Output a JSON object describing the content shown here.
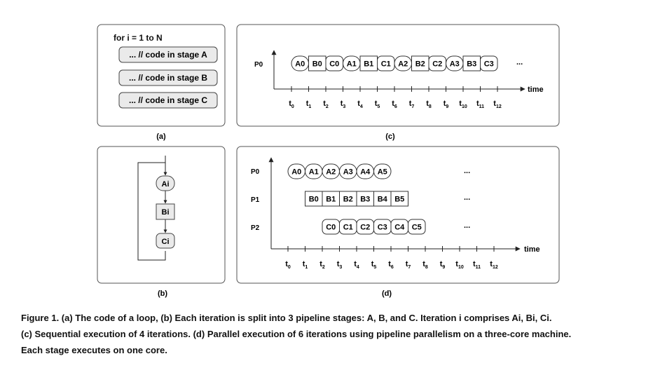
{
  "panel_a": {
    "loop_header": "for i = 1 to N",
    "stages": [
      "... // code in stage A",
      "... // code in stage B",
      "... // code in stage C"
    ],
    "label": "(a)"
  },
  "panel_b": {
    "nodes": [
      "Ai",
      "Bi",
      "Ci"
    ],
    "label": "(b)"
  },
  "panel_c": {
    "processors": [
      "P0"
    ],
    "rows": [
      [
        "A0",
        "B0",
        "C0",
        "A1",
        "B1",
        "C1",
        "A2",
        "B2",
        "C2",
        "A3",
        "B3",
        "C3"
      ]
    ],
    "ellipsis": "...",
    "axis_label": "time",
    "ticks": [
      "0",
      "1",
      "2",
      "3",
      "4",
      "5",
      "6",
      "7",
      "8",
      "9",
      "10",
      "11",
      "12"
    ],
    "label": "(c)"
  },
  "panel_d": {
    "processors": [
      "P0",
      "P1",
      "P2"
    ],
    "rows": [
      [
        "A0",
        "A1",
        "A2",
        "A3",
        "A4",
        "A5"
      ],
      [
        "B0",
        "B1",
        "B2",
        "B3",
        "B4",
        "B5"
      ],
      [
        "C0",
        "C1",
        "C2",
        "C3",
        "C4",
        "C5"
      ]
    ],
    "ellipsis": "...",
    "axis_label": "time",
    "ticks": [
      "0",
      "1",
      "2",
      "3",
      "4",
      "5",
      "6",
      "7",
      "8",
      "9",
      "10",
      "11",
      "12"
    ],
    "label": "(d)"
  },
  "caption": {
    "lines": [
      "Figure 1. (a) The code of a loop, (b) Each iteration is split into 3 pipeline stages: A, B, and C. Iteration i comprises Ai, Bi, Ci.",
      "(c) Sequential execution of 4 iterations. (d) Parallel execution of 6 iterations using pipeline parallelism on a three-core machine.",
      "Each stage executes on one core."
    ]
  }
}
